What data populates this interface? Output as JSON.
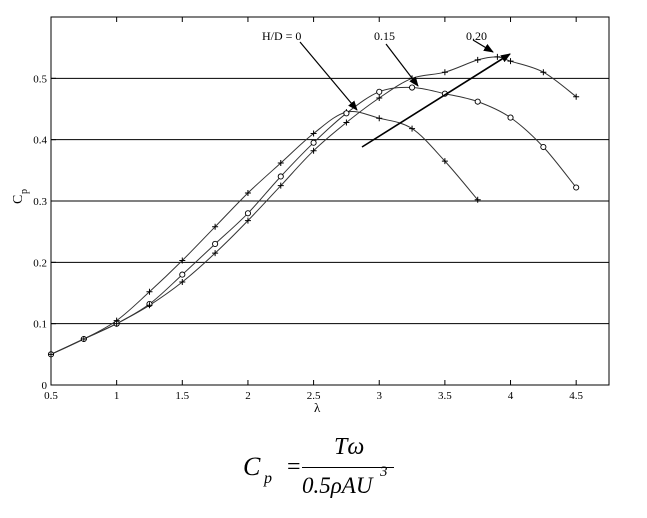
{
  "chart_data": {
    "type": "line",
    "xlabel": "λ",
    "ylabel_main": "C",
    "ylabel_sub": "p",
    "xlim": [
      0.5,
      4.75
    ],
    "ylim": [
      0,
      0.6
    ],
    "xticks": [
      0.5,
      1,
      1.5,
      2,
      2.5,
      3,
      3.5,
      4,
      4.5
    ],
    "xtick_labels": [
      "0.5",
      "1",
      "1.5",
      "2",
      "2.5",
      "3",
      "3.5",
      "4",
      "4.5"
    ],
    "yticks": [
      0,
      0.1,
      0.2,
      0.3,
      0.4,
      0.5
    ],
    "ytick_labels": [
      "0",
      "0.1",
      "0.2",
      "0.3",
      "0.4",
      "0.5"
    ],
    "grid": "horizontal",
    "series": [
      {
        "name": "H/D = 0",
        "marker": "plus",
        "points": [
          [
            0.5,
            0.05
          ],
          [
            0.75,
            0.075
          ],
          [
            1.0,
            0.105
          ],
          [
            1.25,
            0.152
          ],
          [
            1.5,
            0.203
          ],
          [
            1.75,
            0.258
          ],
          [
            2.0,
            0.313
          ],
          [
            2.25,
            0.362
          ],
          [
            2.5,
            0.41
          ],
          [
            2.75,
            0.445
          ],
          [
            3.0,
            0.435
          ],
          [
            3.25,
            0.418
          ],
          [
            3.5,
            0.365
          ],
          [
            3.75,
            0.302
          ]
        ]
      },
      {
        "name": "0.15",
        "marker": "circle",
        "points": [
          [
            0.5,
            0.05
          ],
          [
            0.75,
            0.075
          ],
          [
            1.0,
            0.1
          ],
          [
            1.25,
            0.132
          ],
          [
            1.5,
            0.18
          ],
          [
            1.75,
            0.23
          ],
          [
            2.0,
            0.28
          ],
          [
            2.25,
            0.34
          ],
          [
            2.5,
            0.395
          ],
          [
            2.75,
            0.443
          ],
          [
            3.0,
            0.478
          ],
          [
            3.25,
            0.485
          ],
          [
            3.5,
            0.475
          ],
          [
            3.75,
            0.462
          ],
          [
            4.0,
            0.436
          ],
          [
            4.25,
            0.388
          ],
          [
            4.5,
            0.322
          ]
        ]
      },
      {
        "name": "0.20",
        "marker": "plus",
        "points": [
          [
            0.5,
            0.05
          ],
          [
            0.75,
            0.075
          ],
          [
            1.0,
            0.1
          ],
          [
            1.25,
            0.13
          ],
          [
            1.5,
            0.168
          ],
          [
            1.75,
            0.215
          ],
          [
            2.0,
            0.268
          ],
          [
            2.25,
            0.325
          ],
          [
            2.5,
            0.382
          ],
          [
            2.75,
            0.428
          ],
          [
            3.0,
            0.468
          ],
          [
            3.25,
            0.5
          ],
          [
            3.5,
            0.51
          ],
          [
            3.75,
            0.53
          ],
          [
            3.9,
            0.535
          ],
          [
            4.0,
            0.528
          ],
          [
            4.25,
            0.51
          ],
          [
            4.5,
            0.47
          ]
        ]
      }
    ],
    "annotations": {
      "label_h0": "H/D = 0",
      "label_h15": "0.15",
      "label_h20": "0.20"
    }
  },
  "formula": {
    "lhs_main": "C",
    "lhs_sub": "p",
    "equals": "=",
    "numerator": "Tω",
    "denominator": "0.5ρAU",
    "denominator_exp": "3"
  }
}
